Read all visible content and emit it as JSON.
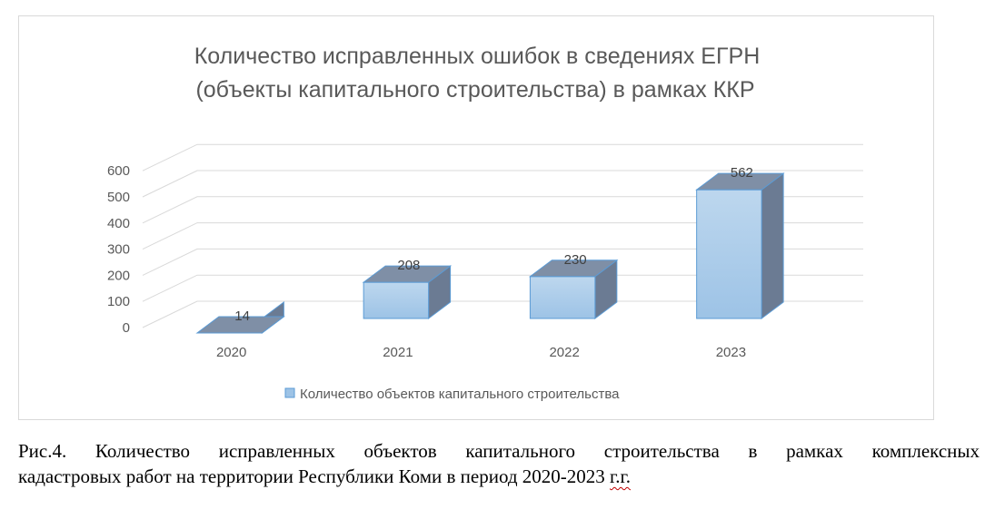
{
  "chart_data": {
    "type": "bar",
    "title_lines": [
      "Количество исправленных ошибок в сведениях ЕГРН",
      "(объекты капитального строительства) в рамках ККР"
    ],
    "categories": [
      "2020",
      "2021",
      "2022",
      "2023"
    ],
    "series": [
      {
        "name": "Количество объектов капитального строительства",
        "values": [
          14,
          208,
          230,
          562
        ],
        "color": "#9dc3e6",
        "side_color": "#6b7b93",
        "top_color": "#7f8fa6",
        "stroke_color": "#5b9bd5"
      }
    ],
    "data_labels": [
      "14",
      "208",
      "230",
      "562"
    ],
    "y_ticks": [
      "0",
      "100",
      "200",
      "300",
      "400",
      "500",
      "600"
    ],
    "ylim": [
      0,
      600
    ],
    "grid": true,
    "style": "3d-column",
    "legend_position": "bottom"
  },
  "caption": {
    "line1": "Рис.4. Количество исправленных объектов капитального строительства в рамках комплексных",
    "line2_main": "кадастровых работ на территории Республики Коми в период 2020-2023 ",
    "line2_flagged": "г.г."
  }
}
